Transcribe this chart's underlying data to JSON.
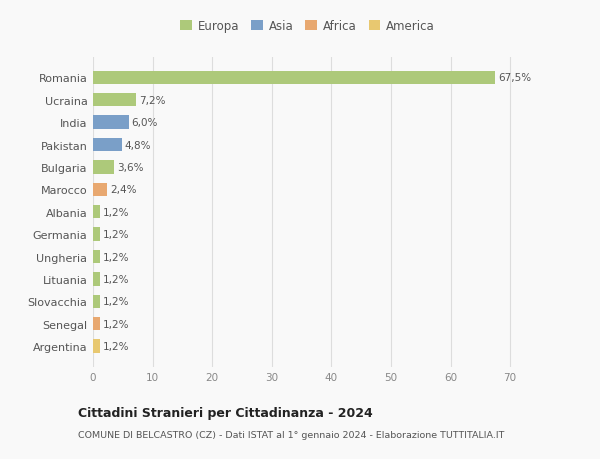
{
  "categories": [
    "Argentina",
    "Senegal",
    "Slovacchia",
    "Lituania",
    "Ungheria",
    "Germania",
    "Albania",
    "Marocco",
    "Bulgaria",
    "Pakistan",
    "India",
    "Ucraina",
    "Romania"
  ],
  "values": [
    1.2,
    1.2,
    1.2,
    1.2,
    1.2,
    1.2,
    1.2,
    2.4,
    3.6,
    4.8,
    6.0,
    7.2,
    67.5
  ],
  "labels": [
    "1,2%",
    "1,2%",
    "1,2%",
    "1,2%",
    "1,2%",
    "1,2%",
    "1,2%",
    "2,4%",
    "3,6%",
    "4,8%",
    "6,0%",
    "7,2%",
    "67,5%"
  ],
  "colors": [
    "#e8c870",
    "#e8a870",
    "#adc97a",
    "#adc97a",
    "#adc97a",
    "#adc97a",
    "#adc97a",
    "#e8a870",
    "#adc97a",
    "#7a9fc8",
    "#7a9fc8",
    "#adc97a",
    "#adc97a"
  ],
  "legend": [
    {
      "label": "Europa",
      "color": "#adc97a"
    },
    {
      "label": "Asia",
      "color": "#7a9fc8"
    },
    {
      "label": "Africa",
      "color": "#e8a870"
    },
    {
      "label": "America",
      "color": "#e8c870"
    }
  ],
  "title": "Cittadini Stranieri per Cittadinanza - 2024",
  "subtitle": "COMUNE DI BELCASTRO (CZ) - Dati ISTAT al 1° gennaio 2024 - Elaborazione TUTTITALIA.IT",
  "xlim": [
    0,
    72
  ],
  "xticks": [
    0,
    10,
    20,
    30,
    40,
    50,
    60,
    70
  ],
  "bg_color": "#f9f9f9",
  "grid_color": "#dddddd",
  "bar_height": 0.6
}
